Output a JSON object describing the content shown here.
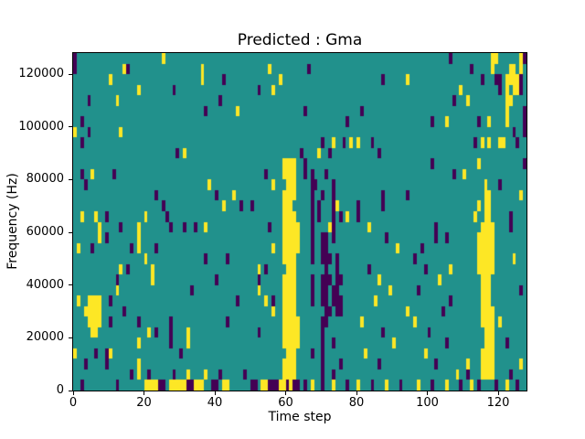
{
  "figure": {
    "background": "#ffffff"
  },
  "chart_data": {
    "type": "heatmap",
    "title": "Predicted : Gma",
    "xlabel": "Time step",
    "ylabel": "Frequency (Hz)",
    "x_range": [
      0,
      128
    ],
    "y_range": [
      0,
      128000
    ],
    "x_ticks": [
      0,
      20,
      40,
      60,
      80,
      100,
      120
    ],
    "x_tick_labels": [
      "0",
      "20",
      "40",
      "60",
      "80",
      "100",
      "120"
    ],
    "y_ticks": [
      0,
      20000,
      40000,
      60000,
      80000,
      100000,
      120000
    ],
    "y_tick_labels": [
      "0",
      "20000",
      "40000",
      "60000",
      "80000",
      "100000",
      "120000"
    ],
    "grid": {
      "cols": 128,
      "rows": 32,
      "row_order": "row 0 = top = 124000-128000 Hz, row 31 = bottom = 0-4000 Hz",
      "cell_size_hz": 4000,
      "cell_size_timesteps": 1
    },
    "colors": {
      "mid": "#21918c",
      "low": "#440154",
      "high": "#fde725",
      "spine": "#000000"
    },
    "value_meaning": {
      "mid": "neutral/background",
      "low": "class 0 (purple)",
      "high": "class 1 (yellow)"
    },
    "legend": null,
    "grid_lines": false,
    "regions": [
      [
        10,
        59,
        30,
        62,
        "y"
      ],
      [
        13,
        116,
        15,
        117,
        "y"
      ],
      [
        16,
        115,
        30,
        118,
        "y"
      ],
      [
        17,
        114,
        20,
        114,
        "y"
      ],
      [
        23,
        4,
        25,
        7,
        "y"
      ],
      [
        17,
        70,
        31,
        70,
        "p"
      ],
      [
        17,
        71,
        25,
        71,
        "p"
      ],
      [
        12,
        73,
        16,
        73,
        "p"
      ],
      [
        19,
        74,
        24,
        74,
        "p"
      ],
      [
        11,
        67,
        19,
        67,
        "p"
      ]
    ],
    "holes": [
      [
        12,
        59
      ],
      [
        20,
        59
      ],
      [
        28,
        59
      ],
      [
        14,
        62
      ],
      [
        20,
        70
      ],
      [
        24,
        70
      ],
      [
        21,
        118
      ],
      [
        22,
        118
      ],
      [
        23,
        118
      ],
      [
        26,
        115
      ],
      [
        27,
        115
      ]
    ],
    "points": [
      [
        0,
        0,
        "p"
      ],
      [
        0,
        25,
        "y"
      ],
      [
        0,
        106,
        "p"
      ],
      [
        0,
        118,
        "y"
      ],
      [
        0,
        119,
        "y"
      ],
      [
        0,
        126,
        "y"
      ],
      [
        0,
        127,
        "p"
      ],
      [
        1,
        0,
        "p"
      ],
      [
        1,
        14,
        "y"
      ],
      [
        1,
        15,
        "p"
      ],
      [
        1,
        36,
        "y"
      ],
      [
        1,
        55,
        "y"
      ],
      [
        1,
        66,
        "p"
      ],
      [
        1,
        112,
        "p"
      ],
      [
        1,
        118,
        "y"
      ],
      [
        1,
        123,
        "y"
      ],
      [
        1,
        124,
        "y"
      ],
      [
        1,
        126,
        "y"
      ],
      [
        2,
        10,
        "y"
      ],
      [
        2,
        36,
        "y"
      ],
      [
        2,
        42,
        "p"
      ],
      [
        2,
        58,
        "y"
      ],
      [
        2,
        87,
        "p"
      ],
      [
        2,
        94,
        "y"
      ],
      [
        2,
        115,
        "p"
      ],
      [
        2,
        119,
        "p"
      ],
      [
        2,
        120,
        "p"
      ],
      [
        2,
        122,
        "y"
      ],
      [
        2,
        123,
        "y"
      ],
      [
        2,
        124,
        "y"
      ],
      [
        2,
        125,
        "y"
      ],
      [
        2,
        126,
        "p"
      ],
      [
        3,
        18,
        "y"
      ],
      [
        3,
        28,
        "p"
      ],
      [
        3,
        52,
        "p"
      ],
      [
        3,
        56,
        "y"
      ],
      [
        3,
        109,
        "y"
      ],
      [
        3,
        120,
        "p"
      ],
      [
        3,
        122,
        "y"
      ],
      [
        3,
        124,
        "y"
      ],
      [
        3,
        125,
        "y"
      ],
      [
        3,
        126,
        "p"
      ],
      [
        4,
        4,
        "p"
      ],
      [
        4,
        12,
        "y"
      ],
      [
        4,
        41,
        "p"
      ],
      [
        4,
        107,
        "p"
      ],
      [
        4,
        111,
        "y"
      ],
      [
        4,
        122,
        "y"
      ],
      [
        4,
        123,
        "y"
      ],
      [
        5,
        37,
        "p"
      ],
      [
        5,
        46,
        "y"
      ],
      [
        5,
        65,
        "p"
      ],
      [
        5,
        81,
        "p"
      ],
      [
        5,
        122,
        "y"
      ],
      [
        5,
        127,
        "p"
      ],
      [
        6,
        2,
        "p"
      ],
      [
        6,
        77,
        "p"
      ],
      [
        6,
        101,
        "p"
      ],
      [
        6,
        105,
        "y"
      ],
      [
        6,
        114,
        "p"
      ],
      [
        6,
        117,
        "y"
      ],
      [
        6,
        122,
        "y"
      ],
      [
        6,
        127,
        "p"
      ],
      [
        7,
        0,
        "y"
      ],
      [
        7,
        4,
        "p"
      ],
      [
        7,
        13,
        "y"
      ],
      [
        7,
        124,
        "p"
      ],
      [
        7,
        127,
        "p"
      ],
      [
        8,
        2,
        "p"
      ],
      [
        8,
        70,
        "p"
      ],
      [
        8,
        73,
        "y"
      ],
      [
        8,
        76,
        "p"
      ],
      [
        8,
        78,
        "y"
      ],
      [
        8,
        80,
        "y"
      ],
      [
        8,
        84,
        "p"
      ],
      [
        8,
        113,
        "p"
      ],
      [
        8,
        115,
        "y"
      ],
      [
        8,
        117,
        "y"
      ],
      [
        8,
        120,
        "y"
      ],
      [
        8,
        121,
        "y"
      ],
      [
        8,
        125,
        "p"
      ],
      [
        9,
        29,
        "p"
      ],
      [
        9,
        31,
        "y"
      ],
      [
        9,
        64,
        "p"
      ],
      [
        9,
        69,
        "y"
      ],
      [
        9,
        72,
        "p"
      ],
      [
        9,
        86,
        "p"
      ],
      [
        10,
        65,
        "p"
      ],
      [
        10,
        101,
        "p"
      ],
      [
        10,
        114,
        "y"
      ],
      [
        10,
        127,
        "p"
      ],
      [
        11,
        2,
        "p"
      ],
      [
        11,
        5,
        "y"
      ],
      [
        11,
        11,
        "p"
      ],
      [
        11,
        54,
        "p"
      ],
      [
        11,
        65,
        "p"
      ],
      [
        11,
        71,
        "p"
      ],
      [
        11,
        107,
        "p"
      ],
      [
        11,
        110,
        "y"
      ],
      [
        12,
        3,
        "p"
      ],
      [
        12,
        38,
        "y"
      ],
      [
        12,
        56,
        "y"
      ],
      [
        12,
        68,
        "p"
      ],
      [
        12,
        116,
        "y"
      ],
      [
        12,
        120,
        "p"
      ],
      [
        13,
        23,
        "p"
      ],
      [
        13,
        40,
        "p"
      ],
      [
        13,
        45,
        "y"
      ],
      [
        13,
        70,
        "p"
      ],
      [
        13,
        87,
        "p"
      ],
      [
        13,
        94,
        "p"
      ],
      [
        13,
        126,
        "y"
      ],
      [
        14,
        25,
        "p"
      ],
      [
        14,
        42,
        "y"
      ],
      [
        14,
        47,
        "p"
      ],
      [
        14,
        50,
        "p"
      ],
      [
        14,
        69,
        "p"
      ],
      [
        14,
        74,
        "y"
      ],
      [
        14,
        80,
        "p"
      ],
      [
        14,
        87,
        "p"
      ],
      [
        14,
        114,
        "y"
      ],
      [
        15,
        2,
        "y"
      ],
      [
        15,
        6,
        "y"
      ],
      [
        15,
        9,
        "p"
      ],
      [
        15,
        20,
        "y"
      ],
      [
        15,
        26,
        "p"
      ],
      [
        15,
        69,
        "p"
      ],
      [
        15,
        75,
        "p"
      ],
      [
        15,
        77,
        "y"
      ],
      [
        15,
        80,
        "p"
      ],
      [
        15,
        113,
        "y"
      ],
      [
        15,
        123,
        "p"
      ],
      [
        16,
        7,
        "y"
      ],
      [
        16,
        13,
        "p"
      ],
      [
        16,
        18,
        "y"
      ],
      [
        16,
        27,
        "p"
      ],
      [
        16,
        31,
        "p"
      ],
      [
        16,
        34,
        "p"
      ],
      [
        16,
        37,
        "y"
      ],
      [
        16,
        55,
        "p"
      ],
      [
        16,
        63,
        "y"
      ],
      [
        16,
        72,
        "y"
      ],
      [
        16,
        83,
        "y"
      ],
      [
        16,
        102,
        "p"
      ],
      [
        16,
        123,
        "p"
      ],
      [
        17,
        7,
        "y"
      ],
      [
        17,
        9,
        "p"
      ],
      [
        17,
        18,
        "y"
      ],
      [
        17,
        63,
        "y"
      ],
      [
        17,
        73,
        "p"
      ],
      [
        17,
        88,
        "p"
      ],
      [
        17,
        102,
        "p"
      ],
      [
        17,
        105,
        "p"
      ],
      [
        18,
        1,
        "y"
      ],
      [
        18,
        5,
        "p"
      ],
      [
        18,
        16,
        "p"
      ],
      [
        18,
        18,
        "y"
      ],
      [
        18,
        23,
        "p"
      ],
      [
        18,
        56,
        "y"
      ],
      [
        18,
        63,
        "y"
      ],
      [
        18,
        91,
        "y"
      ],
      [
        18,
        98,
        "p"
      ],
      [
        19,
        20,
        "y"
      ],
      [
        19,
        37,
        "p"
      ],
      [
        19,
        43,
        "p"
      ],
      [
        19,
        72,
        "p"
      ],
      [
        19,
        96,
        "p"
      ],
      [
        19,
        124,
        "y"
      ],
      [
        20,
        13,
        "y"
      ],
      [
        20,
        15,
        "p"
      ],
      [
        20,
        22,
        "y"
      ],
      [
        20,
        52,
        "y"
      ],
      [
        20,
        54,
        "p"
      ],
      [
        20,
        83,
        "p"
      ],
      [
        20,
        99,
        "p"
      ],
      [
        20,
        106,
        "y"
      ],
      [
        21,
        12,
        "p"
      ],
      [
        21,
        22,
        "y"
      ],
      [
        21,
        40,
        "p"
      ],
      [
        21,
        52,
        "p"
      ],
      [
        21,
        67,
        "p"
      ],
      [
        21,
        72,
        "p"
      ],
      [
        21,
        75,
        "p"
      ],
      [
        21,
        86,
        "y"
      ],
      [
        21,
        103,
        "y"
      ],
      [
        22,
        12,
        "y"
      ],
      [
        22,
        33,
        "p"
      ],
      [
        22,
        52,
        "y"
      ],
      [
        22,
        67,
        "p"
      ],
      [
        22,
        73,
        "p"
      ],
      [
        22,
        89,
        "y"
      ],
      [
        22,
        97,
        "p"
      ],
      [
        22,
        126,
        "p"
      ],
      [
        23,
        1,
        "y"
      ],
      [
        23,
        10,
        "p"
      ],
      [
        23,
        46,
        "p"
      ],
      [
        23,
        54,
        "y"
      ],
      [
        23,
        56,
        "p"
      ],
      [
        23,
        67,
        "p"
      ],
      [
        23,
        73,
        "p"
      ],
      [
        23,
        75,
        "p"
      ],
      [
        23,
        85,
        "y"
      ],
      [
        23,
        106,
        "p"
      ],
      [
        24,
        3,
        "y"
      ],
      [
        24,
        14,
        "p"
      ],
      [
        24,
        56,
        "y"
      ],
      [
        24,
        72,
        "p"
      ],
      [
        24,
        75,
        "p"
      ],
      [
        24,
        94,
        "y"
      ],
      [
        24,
        104,
        "p"
      ],
      [
        25,
        10,
        "p"
      ],
      [
        25,
        18,
        "p"
      ],
      [
        25,
        27,
        "p"
      ],
      [
        25,
        43,
        "p"
      ],
      [
        25,
        63,
        "y"
      ],
      [
        25,
        81,
        "y"
      ],
      [
        25,
        96,
        "y"
      ],
      [
        25,
        120,
        "y"
      ],
      [
        26,
        5,
        "y"
      ],
      [
        26,
        6,
        "y"
      ],
      [
        26,
        21,
        "y"
      ],
      [
        26,
        23,
        "p"
      ],
      [
        26,
        27,
        "p"
      ],
      [
        26,
        32,
        "y"
      ],
      [
        26,
        52,
        "p"
      ],
      [
        26,
        63,
        "y"
      ],
      [
        26,
        87,
        "p"
      ],
      [
        26,
        100,
        "p"
      ],
      [
        27,
        18,
        "y"
      ],
      [
        27,
        27,
        "p"
      ],
      [
        27,
        32,
        "y"
      ],
      [
        27,
        63,
        "y"
      ],
      [
        27,
        73,
        "p"
      ],
      [
        27,
        90,
        "y"
      ],
      [
        27,
        105,
        "p"
      ],
      [
        27,
        122,
        "p"
      ],
      [
        28,
        0,
        "y"
      ],
      [
        28,
        6,
        "p"
      ],
      [
        28,
        9,
        "p"
      ],
      [
        28,
        10,
        "y"
      ],
      [
        28,
        30,
        "p"
      ],
      [
        28,
        67,
        "p"
      ],
      [
        28,
        82,
        "y"
      ],
      [
        28,
        99,
        "y"
      ],
      [
        29,
        3,
        "p"
      ],
      [
        29,
        9,
        "p"
      ],
      [
        29,
        18,
        "y"
      ],
      [
        29,
        75,
        "p"
      ],
      [
        29,
        86,
        "p"
      ],
      [
        29,
        102,
        "p"
      ],
      [
        29,
        111,
        "y"
      ],
      [
        29,
        126,
        "y"
      ],
      [
        30,
        16,
        "p"
      ],
      [
        30,
        18,
        "y"
      ],
      [
        30,
        21,
        "p"
      ],
      [
        30,
        28,
        "p"
      ],
      [
        30,
        32,
        "y"
      ],
      [
        30,
        37,
        "y"
      ],
      [
        30,
        41,
        "p"
      ],
      [
        30,
        48,
        "p"
      ],
      [
        30,
        73,
        "p"
      ],
      [
        30,
        108,
        "y"
      ],
      [
        30,
        111,
        "p"
      ],
      [
        30,
        123,
        "p"
      ],
      [
        31,
        2,
        "p"
      ],
      [
        31,
        12,
        "p"
      ],
      [
        31,
        20,
        "y"
      ],
      [
        31,
        21,
        "y"
      ],
      [
        31,
        22,
        "y"
      ],
      [
        31,
        23,
        "y"
      ],
      [
        31,
        24,
        "p"
      ],
      [
        31,
        25,
        "p"
      ],
      [
        31,
        27,
        "y"
      ],
      [
        31,
        28,
        "y"
      ],
      [
        31,
        29,
        "y"
      ],
      [
        31,
        30,
        "y"
      ],
      [
        31,
        31,
        "y"
      ],
      [
        31,
        32,
        "p"
      ],
      [
        31,
        33,
        "p"
      ],
      [
        31,
        34,
        "y"
      ],
      [
        31,
        35,
        "y"
      ],
      [
        31,
        36,
        "y"
      ],
      [
        31,
        39,
        "p"
      ],
      [
        31,
        40,
        "p"
      ],
      [
        31,
        42,
        "y"
      ],
      [
        31,
        43,
        "y"
      ],
      [
        31,
        50,
        "p"
      ],
      [
        31,
        51,
        "p"
      ],
      [
        31,
        53,
        "y"
      ],
      [
        31,
        54,
        "y"
      ],
      [
        31,
        55,
        "p"
      ],
      [
        31,
        56,
        "p"
      ],
      [
        31,
        57,
        "p"
      ],
      [
        31,
        58,
        "y"
      ],
      [
        31,
        59,
        "y"
      ],
      [
        31,
        60,
        "p"
      ],
      [
        31,
        61,
        "y"
      ],
      [
        31,
        62,
        "p"
      ],
      [
        31,
        63,
        "p"
      ],
      [
        31,
        65,
        "p"
      ],
      [
        31,
        67,
        "y"
      ],
      [
        31,
        73,
        "y"
      ],
      [
        31,
        77,
        "p"
      ],
      [
        31,
        80,
        "y"
      ],
      [
        31,
        84,
        "p"
      ],
      [
        31,
        88,
        "y"
      ],
      [
        31,
        92,
        "p"
      ],
      [
        31,
        97,
        "y"
      ],
      [
        31,
        101,
        "p"
      ],
      [
        31,
        105,
        "y"
      ],
      [
        31,
        109,
        "p"
      ],
      [
        31,
        112,
        "y"
      ],
      [
        31,
        114,
        "p"
      ],
      [
        31,
        119,
        "p"
      ],
      [
        31,
        122,
        "y"
      ],
      [
        31,
        125,
        "p"
      ]
    ]
  }
}
